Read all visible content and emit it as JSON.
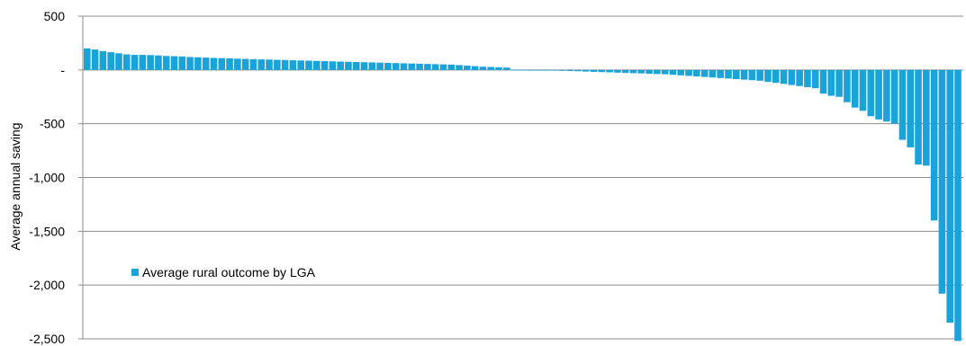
{
  "chart_data": {
    "type": "bar",
    "title": "",
    "xlabel": "",
    "ylabel": "Average annual saving",
    "ylim": [
      -2500,
      500
    ],
    "yticks": [
      500,
      0,
      -500,
      -1000,
      -1500,
      -2000,
      -2500
    ],
    "ytick_labels": [
      "500",
      "-",
      "-500",
      "-1,000",
      "-1,500",
      "-2,000",
      "-2,500"
    ],
    "grid": true,
    "legend_position": "lower-left",
    "series": [
      {
        "name": "Average rural  outcome by LGA",
        "color": "#1aa3d9",
        "values": [
          200,
          190,
          175,
          165,
          155,
          145,
          140,
          140,
          138,
          135,
          130,
          128,
          125,
          120,
          118,
          115,
          112,
          110,
          108,
          105,
          103,
          100,
          98,
          96,
          94,
          92,
          90,
          88,
          86,
          84,
          82,
          80,
          78,
          76,
          74,
          72,
          70,
          68,
          66,
          64,
          62,
          60,
          58,
          56,
          54,
          52,
          50,
          45,
          40,
          35,
          30,
          28,
          25,
          22,
          2,
          1,
          0,
          -1,
          -2,
          -5,
          -8,
          -10,
          -12,
          -15,
          -18,
          -20,
          -22,
          -25,
          -28,
          -30,
          -32,
          -35,
          -38,
          -40,
          -45,
          -50,
          -55,
          -60,
          -65,
          -70,
          -75,
          -80,
          -85,
          -90,
          -95,
          -100,
          -110,
          -120,
          -130,
          -140,
          -150,
          -160,
          -170,
          -220,
          -240,
          -250,
          -300,
          -350,
          -380,
          -430,
          -460,
          -480,
          -500,
          -650,
          -720,
          -880,
          -890,
          -1400,
          -2080,
          -2350,
          -2520
        ]
      }
    ]
  }
}
